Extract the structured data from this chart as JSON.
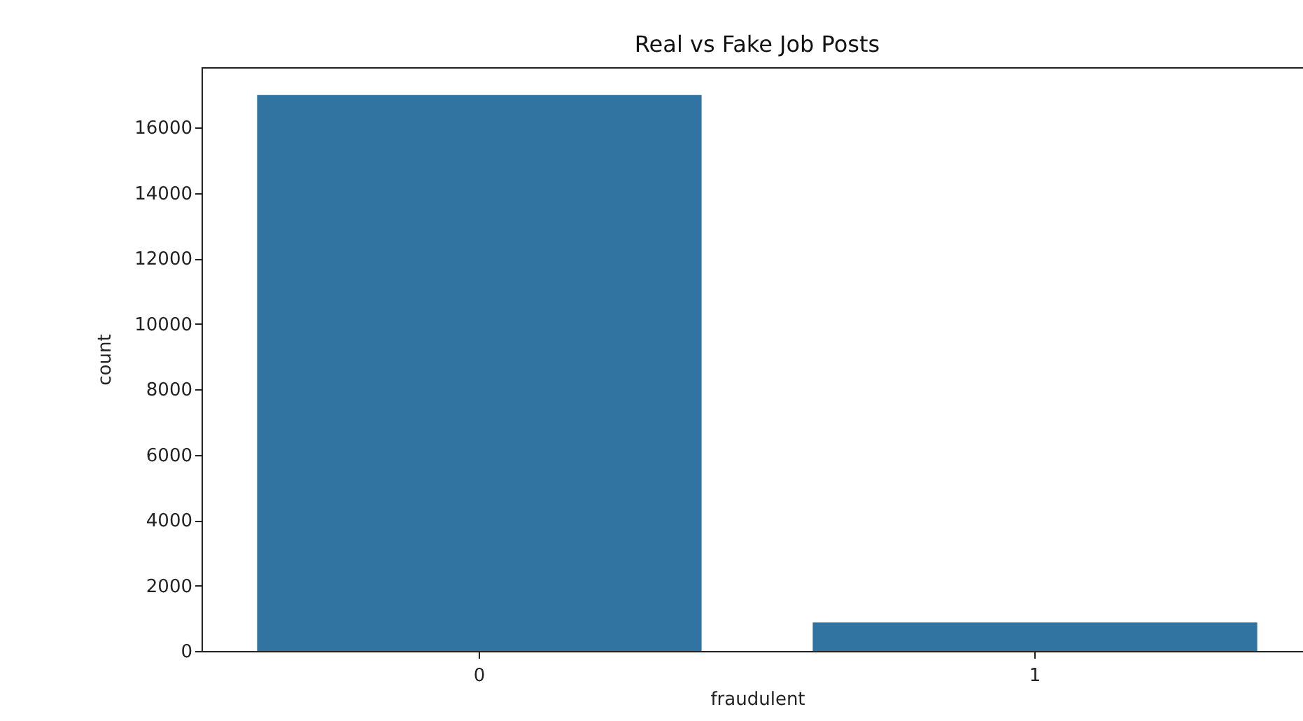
{
  "chart_data": {
    "type": "bar",
    "title": "Real vs Fake Job Posts",
    "xlabel": "fraudulent",
    "ylabel": "count",
    "categories": [
      "0",
      "1"
    ],
    "values": [
      17000,
      870
    ],
    "color": "#3274a1",
    "ylim": [
      0,
      17850
    ],
    "yticks": [
      0,
      2000,
      4000,
      6000,
      8000,
      10000,
      12000,
      14000,
      16000
    ],
    "grid": false
  }
}
